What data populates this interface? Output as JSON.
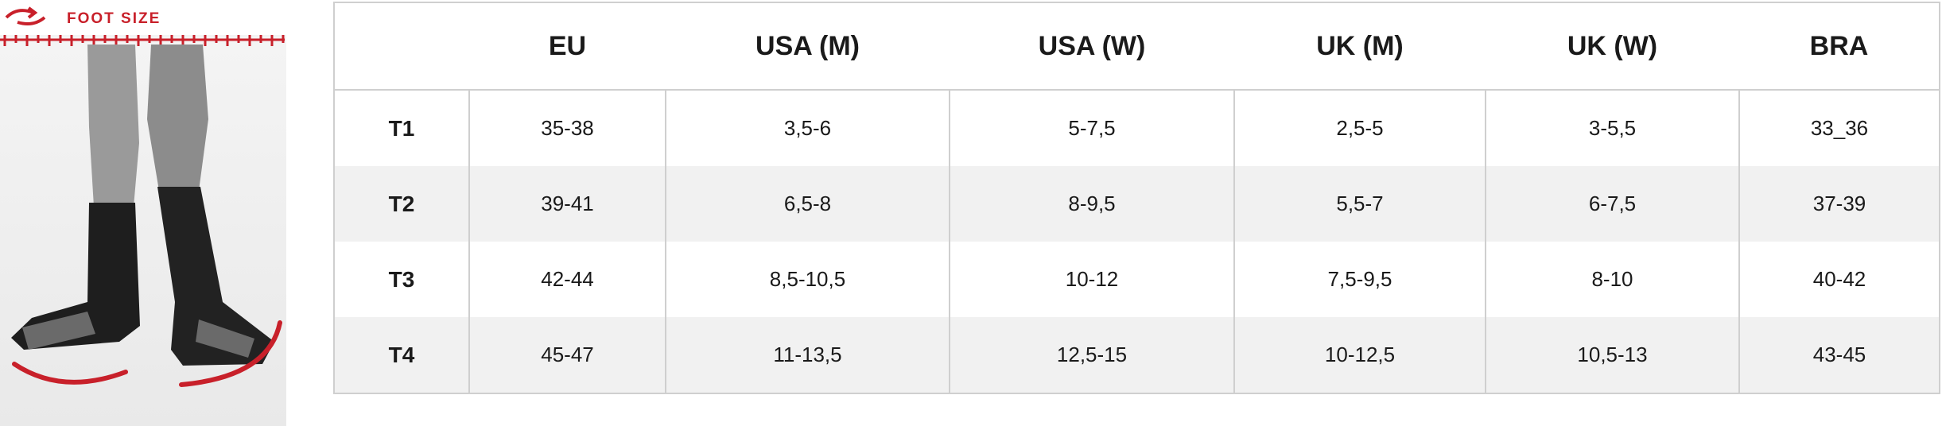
{
  "header": {
    "label": "FOOT SIZE"
  },
  "table": {
    "columns": [
      "EU",
      "USA (M)",
      "USA (W)",
      "UK (M)",
      "UK (W)",
      "BRA"
    ],
    "rows": [
      [
        "T1",
        "35-38",
        "3,5-6",
        "5-7,5",
        "2,5-5",
        "3-5,5",
        "33_36"
      ],
      [
        "T2",
        "39-41",
        "6,5-8",
        "8-9,5",
        "5,5-7",
        "6-7,5",
        "37-39"
      ],
      [
        "T3",
        "42-44",
        "8,5-10,5",
        "10-12",
        "7,5-9,5",
        "8-10",
        "40-42"
      ],
      [
        "T4",
        "45-47",
        "11-13,5",
        "12,5-15",
        "10-12,5",
        "10,5-13",
        "43-45"
      ]
    ]
  }
}
